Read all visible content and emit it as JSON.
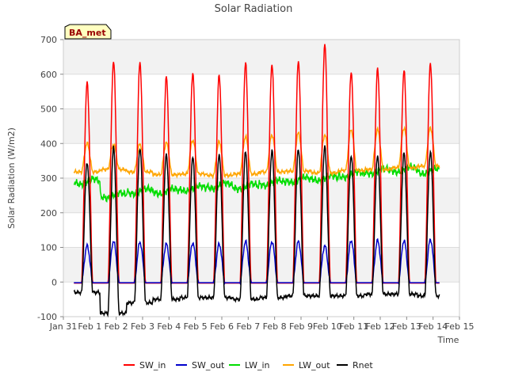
{
  "chart_data": {
    "type": "line",
    "title": "Solar Radiation",
    "xlabel": "Time",
    "ylabel": "Solar Radiation (W/m2)",
    "site_label": "BA_met",
    "ylim": [
      -100,
      700
    ],
    "yticks": [
      -100,
      0,
      100,
      200,
      300,
      400,
      500,
      600,
      700
    ],
    "xlim": [
      0,
      15
    ],
    "xticks": [
      0,
      1,
      2,
      3,
      4,
      5,
      6,
      7,
      8,
      9,
      10,
      11,
      12,
      13,
      14,
      15
    ],
    "xtick_labels": [
      "Jan 31",
      "Feb 1",
      "Feb 2",
      "Feb 3",
      "Feb 4",
      "Feb 5",
      "Feb 6",
      "Feb 7",
      "Feb 8",
      "Feb 9",
      "Feb 10",
      "Feb 11",
      "Feb 12",
      "Feb 13",
      "Feb 14",
      "Feb 15"
    ],
    "grid": "horizontal bands",
    "legend_position": "bottom",
    "day_centers": [
      0.9,
      1.9,
      2.9,
      3.9,
      4.9,
      5.9,
      6.9,
      7.9,
      8.9,
      9.9,
      10.9,
      11.9,
      12.9,
      13.9
    ],
    "series": [
      {
        "name": "SW_in",
        "color": "#ff0000",
        "values": [
          575,
          638,
          635,
          592,
          605,
          598,
          632,
          630,
          636,
          686,
          608,
          615,
          613,
          632
        ]
      },
      {
        "name": "SW_out",
        "color": "#0000cc",
        "values": [
          105,
          118,
          115,
          110,
          113,
          110,
          117,
          117,
          117,
          105,
          120,
          120,
          120,
          123
        ]
      },
      {
        "name": "LW_in",
        "color": "#00dd00",
        "values": [
          290,
          250,
          262,
          262,
          270,
          278,
          276,
          286,
          295,
          300,
          310,
          320,
          325,
          320
        ]
      },
      {
        "name": "LW_out",
        "color": "#ffa500",
        "values": [
          400,
          398,
          398,
          402,
          410,
          405,
          420,
          425,
          430,
          425,
          440,
          440,
          445,
          445
        ]
      },
      {
        "name": "Rnet",
        "color": "#000000",
        "values": [
          345,
          388,
          388,
          368,
          360,
          370,
          375,
          380,
          385,
          390,
          365,
          365,
          372,
          378
        ]
      }
    ]
  }
}
